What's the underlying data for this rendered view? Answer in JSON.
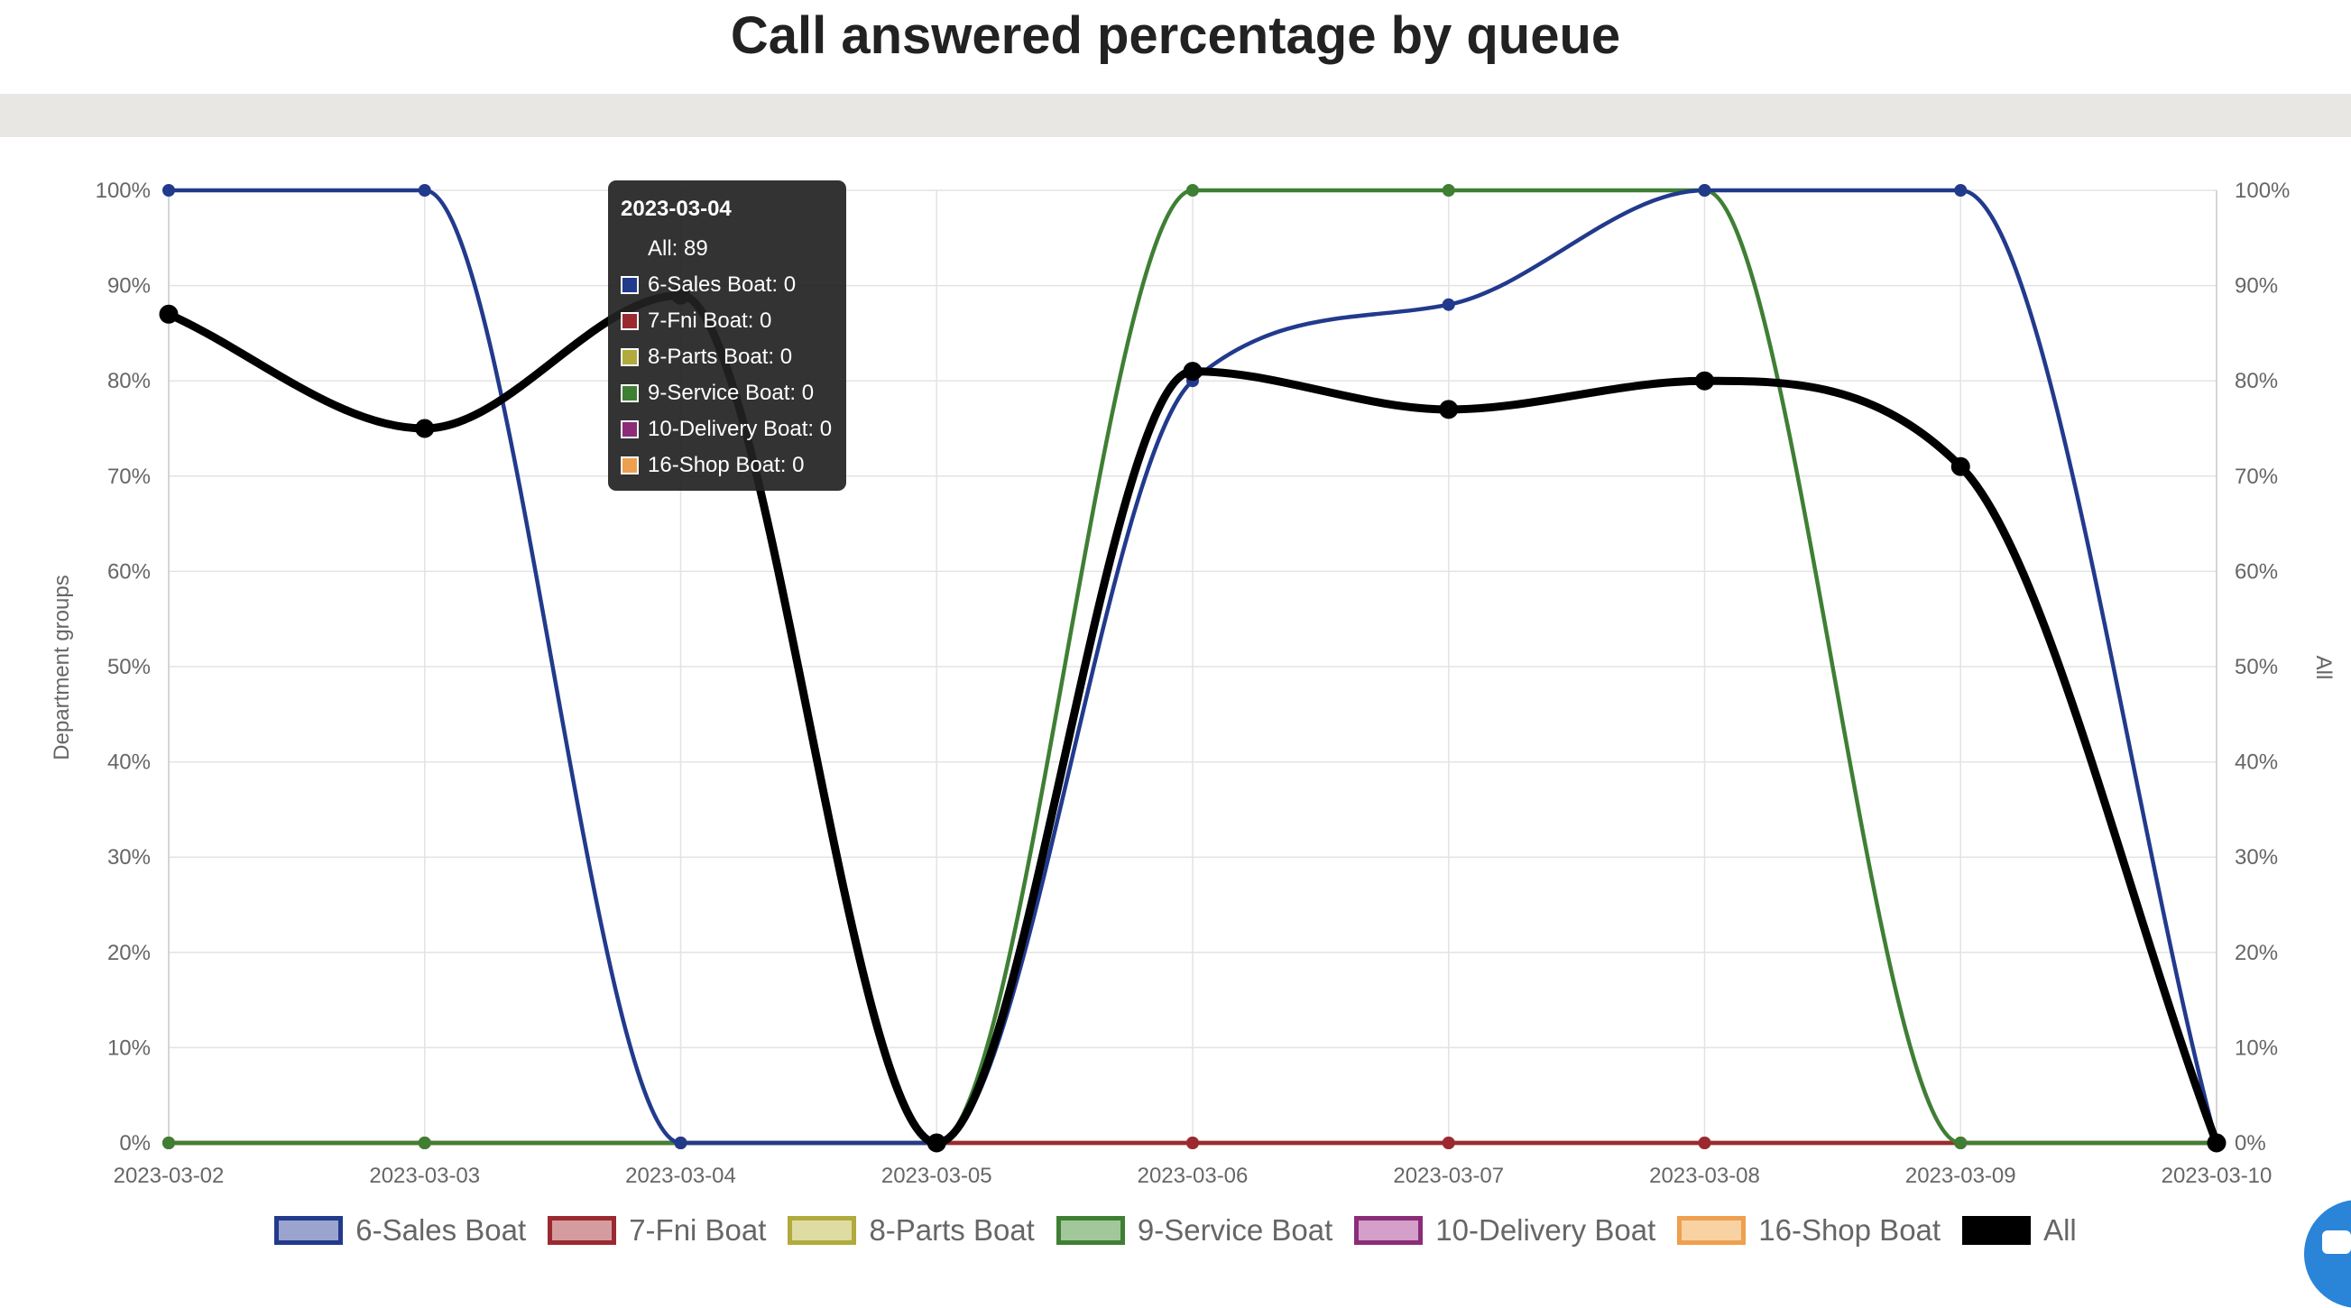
{
  "page": {
    "title": "Call answered percentage by queue"
  },
  "chart_data": {
    "type": "line",
    "title": "Call answered percentage by queue",
    "categories": [
      "2023-03-02",
      "2023-03-03",
      "2023-03-04",
      "2023-03-05",
      "2023-03-06",
      "2023-03-07",
      "2023-03-08",
      "2023-03-09",
      "2023-03-10"
    ],
    "ylabel_left": "Department groups",
    "ylabel_right": "All",
    "ylim": [
      0,
      100
    ],
    "yticks": [
      "0%",
      "10%",
      "20%",
      "30%",
      "40%",
      "50%",
      "60%",
      "70%",
      "80%",
      "90%",
      "100%"
    ],
    "grid": true,
    "legend_position": "bottom",
    "series": [
      {
        "name": "6-Sales Boat",
        "color": "#223a8c",
        "fill": "#9ba3cf",
        "values": [
          100,
          100,
          0,
          0,
          80,
          88,
          100,
          100,
          0
        ]
      },
      {
        "name": "7-Fni Boat",
        "color": "#9b2a30",
        "fill": "#d59ca0",
        "values": [
          0,
          0,
          0,
          0,
          0,
          0,
          0,
          0,
          0
        ]
      },
      {
        "name": "8-Parts Boat",
        "color": "#b0ab3c",
        "fill": "#dfdca3",
        "values": [
          0,
          0,
          0,
          0,
          0,
          0,
          0,
          0,
          0
        ]
      },
      {
        "name": "9-Service Boat",
        "color": "#3f7f34",
        "fill": "#a2c79a",
        "values": [
          0,
          0,
          0,
          0,
          100,
          100,
          100,
          0,
          0
        ]
      },
      {
        "name": "10-Delivery Boat",
        "color": "#8c2c78",
        "fill": "#d49fc8",
        "values": [
          0,
          0,
          0,
          0,
          0,
          0,
          0,
          0,
          0
        ]
      },
      {
        "name": "16-Shop Boat",
        "color": "#eea04e",
        "fill": "#f9d2a4",
        "values": [
          0,
          0,
          0,
          0,
          0,
          0,
          0,
          0,
          0
        ]
      },
      {
        "name": "All",
        "color": "#000000",
        "fill": "#000000",
        "values": [
          87,
          75,
          89,
          0,
          81,
          77,
          80,
          71,
          0
        ]
      }
    ],
    "tooltip": {
      "title": "2023-03-04",
      "rows": [
        {
          "label": "All: 89",
          "color": ""
        },
        {
          "label": "6-Sales Boat: 0",
          "color": "#223a8c"
        },
        {
          "label": "7-Fni Boat: 0",
          "color": "#9b2a30"
        },
        {
          "label": "8-Parts Boat: 0",
          "color": "#b0ab3c"
        },
        {
          "label": "9-Service Boat: 0",
          "color": "#3f7f34"
        },
        {
          "label": "10-Delivery Boat: 0",
          "color": "#8c2c78"
        },
        {
          "label": "16-Shop Boat: 0",
          "color": "#eea04e"
        }
      ]
    }
  }
}
